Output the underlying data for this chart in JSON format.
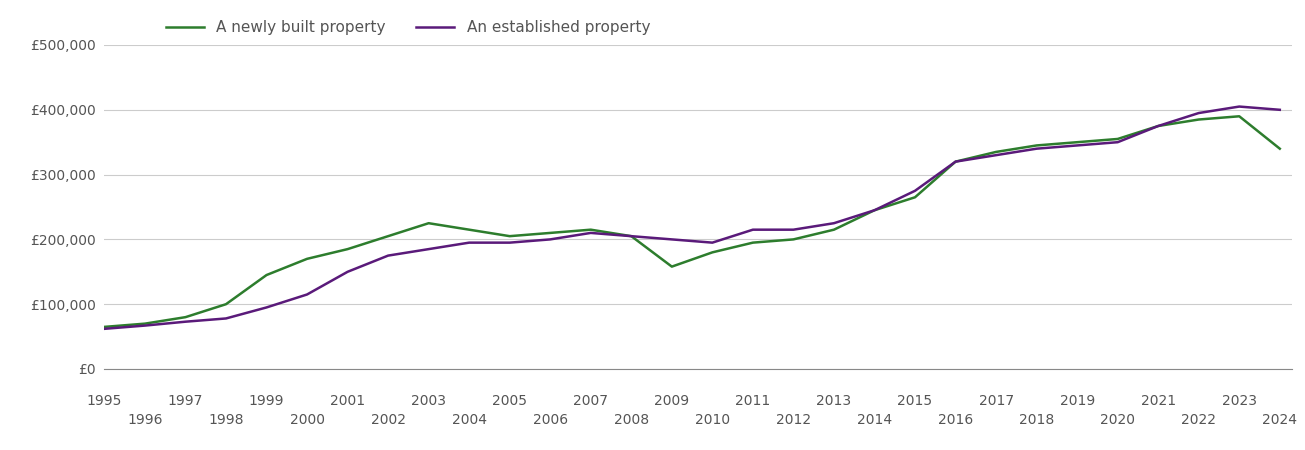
{
  "years": [
    1995,
    1996,
    1997,
    1998,
    1999,
    2000,
    2001,
    2002,
    2003,
    2004,
    2005,
    2006,
    2007,
    2008,
    2009,
    2010,
    2011,
    2012,
    2013,
    2014,
    2015,
    2016,
    2017,
    2018,
    2019,
    2020,
    2021,
    2022,
    2023,
    2024
  ],
  "new_build": [
    65000,
    70000,
    80000,
    100000,
    145000,
    170000,
    185000,
    205000,
    225000,
    215000,
    205000,
    210000,
    215000,
    205000,
    158000,
    180000,
    195000,
    200000,
    215000,
    245000,
    265000,
    320000,
    335000,
    345000,
    350000,
    355000,
    375000,
    385000,
    390000,
    340000
  ],
  "established": [
    62000,
    67000,
    73000,
    78000,
    95000,
    115000,
    150000,
    175000,
    185000,
    195000,
    195000,
    200000,
    210000,
    205000,
    200000,
    195000,
    215000,
    215000,
    225000,
    245000,
    275000,
    320000,
    330000,
    340000,
    345000,
    350000,
    375000,
    395000,
    405000,
    400000
  ],
  "new_build_color": "#2d7d2d",
  "established_color": "#5a1a7a",
  "new_build_label": "A newly built property",
  "established_label": "An established property",
  "ylim": [
    0,
    500000
  ],
  "yticks": [
    0,
    100000,
    200000,
    300000,
    400000,
    500000
  ],
  "background_color": "#ffffff",
  "grid_color": "#cccccc",
  "line_width": 1.8,
  "tick_label_color": "#555555",
  "legend_fontsize": 11
}
